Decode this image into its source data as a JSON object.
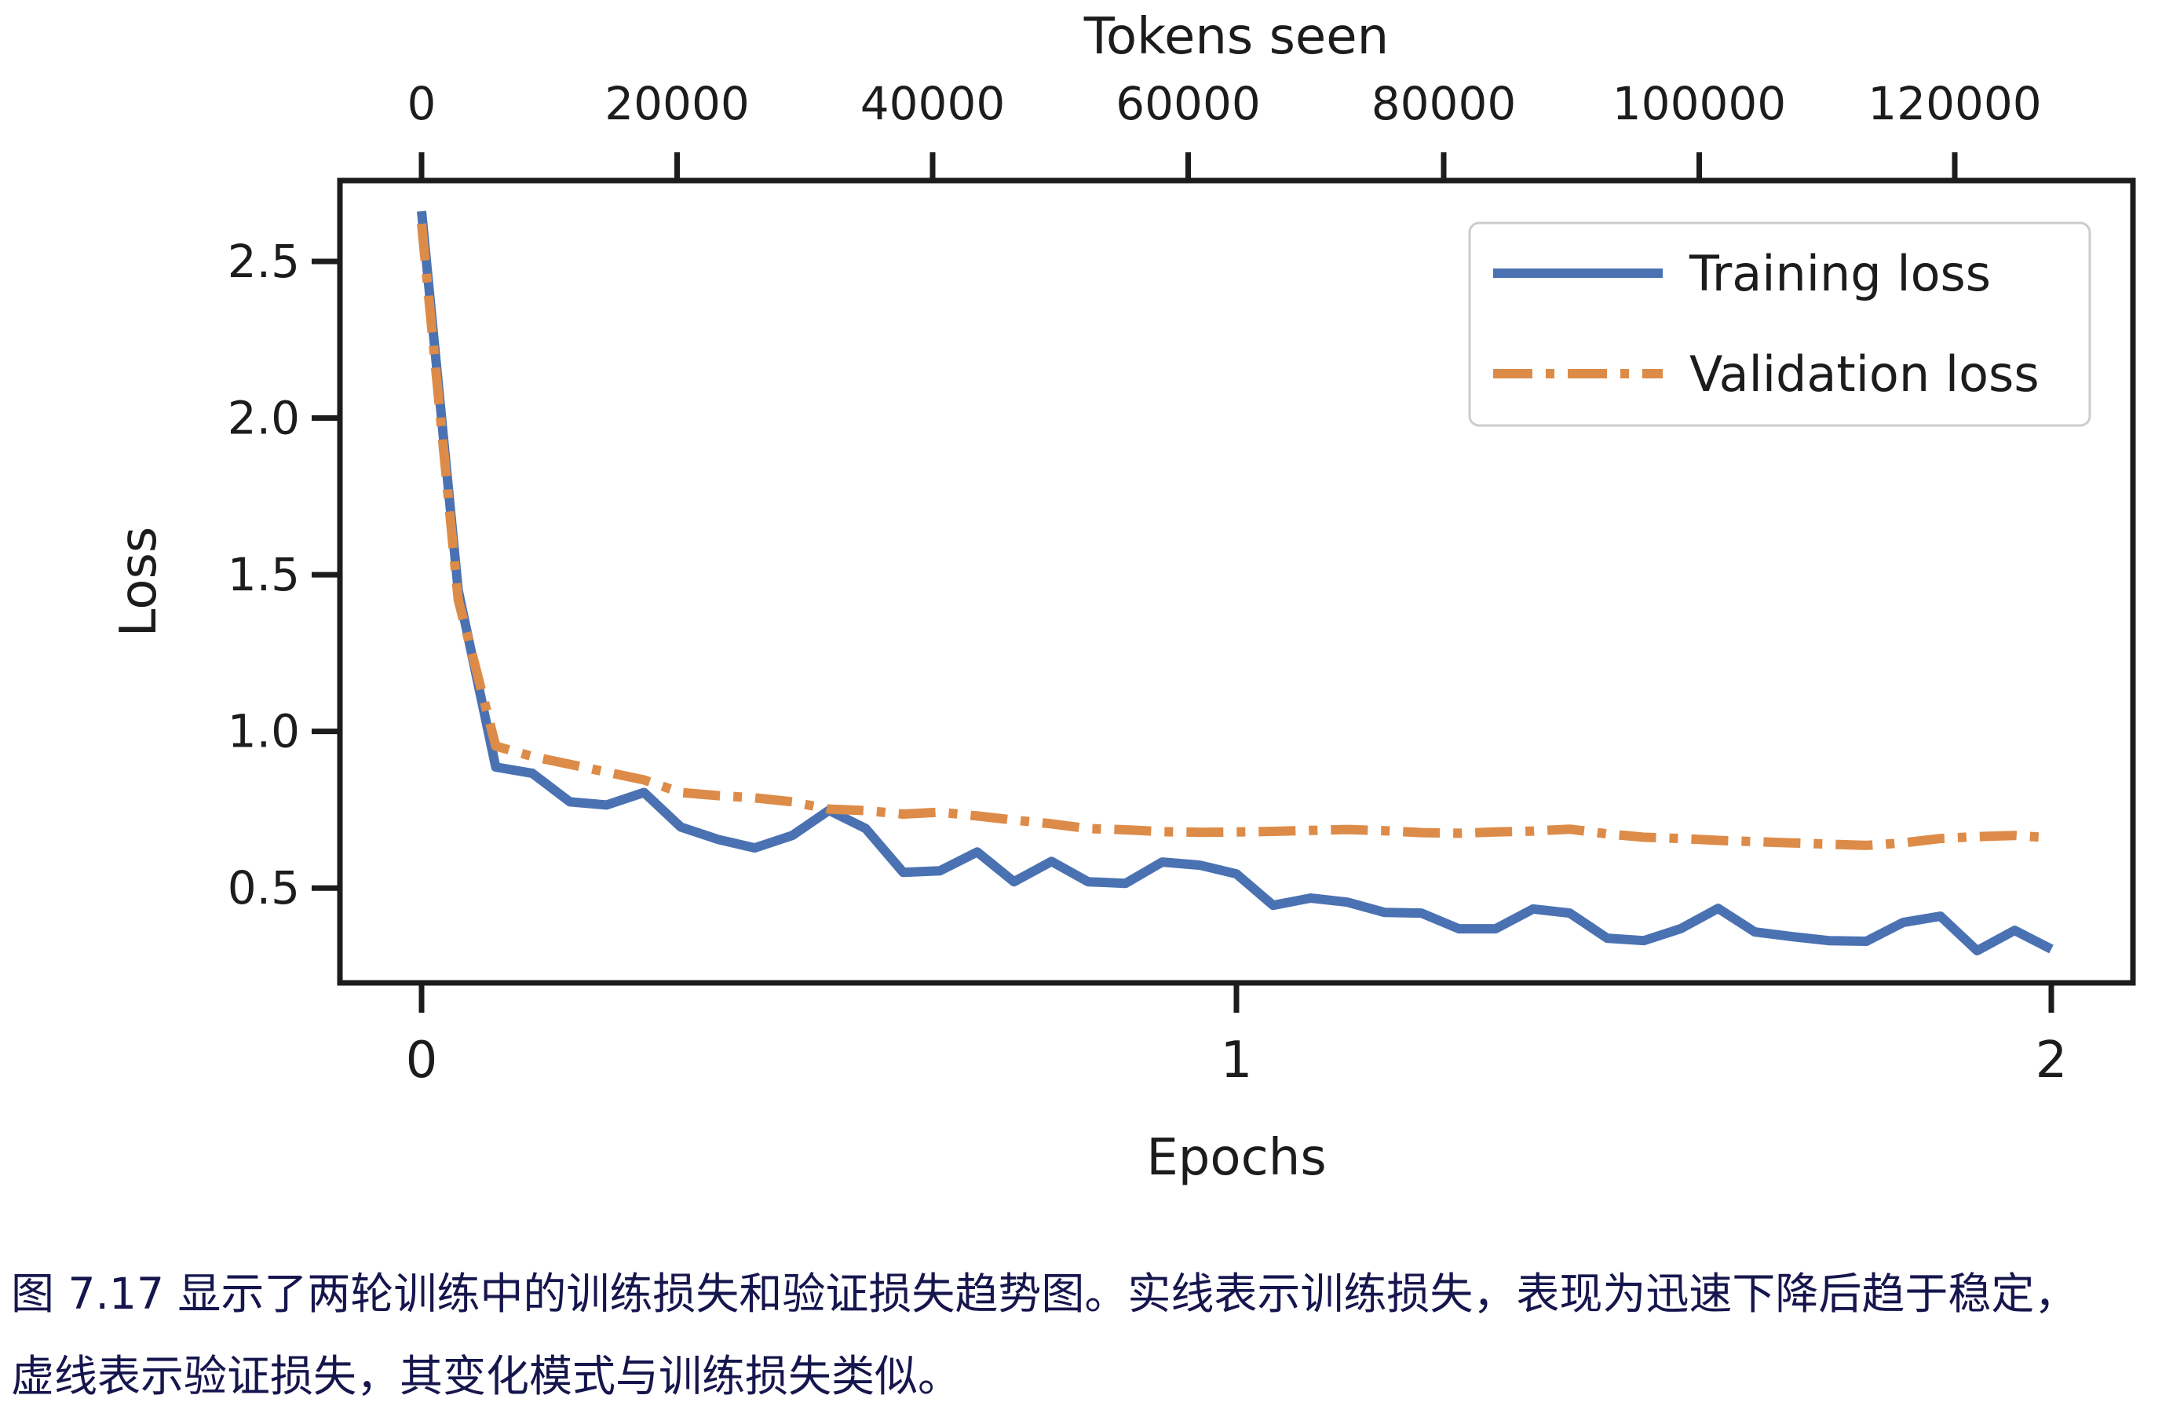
{
  "figure": {
    "caption": {
      "line1": "图 7.17 显示了两轮训练中的训练损失和验证损失趋势图。实线表示训练损失，表现为迅速下降后趋于稳定，",
      "line2": "虚线表示验证损失，其变化模式与训练损失类似。"
    }
  },
  "chart_data": {
    "type": "line",
    "xlabel": "Epochs",
    "ylabel": "Loss",
    "x_top_label": "Tokens seen",
    "x_bottom": {
      "ticks": [
        0,
        1,
        2
      ],
      "range": [
        -0.1,
        2.1
      ]
    },
    "x_top": {
      "ticks": [
        0,
        20000,
        40000,
        60000,
        80000,
        100000,
        120000
      ],
      "tokens_per_epoch": 63800
    },
    "y": {
      "ticks": [
        0.5,
        1.0,
        1.5,
        2.0,
        2.5
      ],
      "range": [
        0.2,
        2.76
      ]
    },
    "grid": "off",
    "legend_position": "upper right",
    "epochs": [
      0,
      0.045,
      0.091,
      0.136,
      0.182,
      0.227,
      0.273,
      0.318,
      0.364,
      0.409,
      0.455,
      0.5,
      0.545,
      0.591,
      0.636,
      0.682,
      0.727,
      0.773,
      0.818,
      0.864,
      0.909,
      0.955,
      1.0,
      1.045,
      1.091,
      1.136,
      1.182,
      1.227,
      1.273,
      1.318,
      1.364,
      1.409,
      1.455,
      1.5,
      1.545,
      1.591,
      1.636,
      1.682,
      1.727,
      1.773,
      1.818,
      1.864,
      1.909,
      1.955,
      2.0
    ],
    "series": [
      {
        "name": "Training loss",
        "style": "solid",
        "color": "#4a72b2",
        "values": [
          2.66,
          1.45,
          0.886,
          0.866,
          0.775,
          0.765,
          0.805,
          0.695,
          0.655,
          0.628,
          0.668,
          0.748,
          0.69,
          0.55,
          0.555,
          0.615,
          0.52,
          0.585,
          0.52,
          0.515,
          0.583,
          0.573,
          0.545,
          0.445,
          0.468,
          0.455,
          0.422,
          0.42,
          0.37,
          0.37,
          0.433,
          0.42,
          0.34,
          0.332,
          0.37,
          0.435,
          0.36,
          0.345,
          0.332,
          0.33,
          0.39,
          0.41,
          0.3,
          0.365,
          0.305
        ]
      },
      {
        "name": "Validation loss",
        "style": "dashdot",
        "color": "#dd8b48",
        "values": [
          2.62,
          1.42,
          0.953,
          0.92,
          0.895,
          0.87,
          0.845,
          0.805,
          0.795,
          0.788,
          0.775,
          0.752,
          0.747,
          0.736,
          0.742,
          0.73,
          0.717,
          0.705,
          0.69,
          0.686,
          0.68,
          0.678,
          0.679,
          0.681,
          0.684,
          0.687,
          0.683,
          0.677,
          0.675,
          0.679,
          0.682,
          0.688,
          0.673,
          0.662,
          0.658,
          0.652,
          0.648,
          0.644,
          0.64,
          0.636,
          0.644,
          0.658,
          0.664,
          0.668,
          0.66
        ]
      }
    ],
    "colors": {
      "axis": "#1c1c1c",
      "legend_border": "#cccccc",
      "caption_text": "#16164e"
    }
  }
}
